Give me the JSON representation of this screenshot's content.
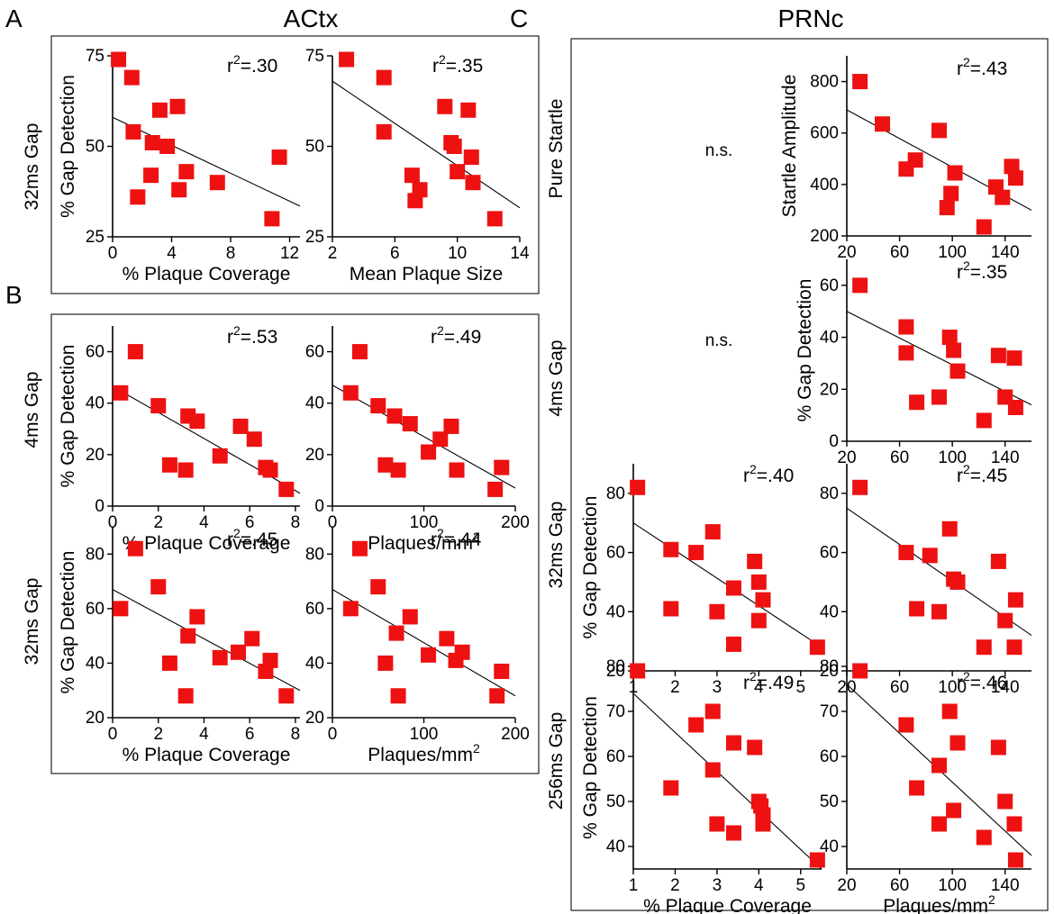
{
  "figure": {
    "letters": {
      "a": "A",
      "b": "B",
      "c": "C"
    },
    "titles": {
      "actx": "ACtx",
      "prnc": "PRNc"
    },
    "row_labels": {
      "a_32ms": "32ms Gap",
      "b_4ms": "4ms Gap",
      "b_32ms": "32ms Gap",
      "c_pure": "Pure Startle",
      "c_4ms": "4ms Gap",
      "c_32ms": "32ms Gap",
      "c_256ms": "256ms Gap"
    },
    "ns_text": "n.s."
  },
  "colors": {
    "marker": "#ee1111",
    "line": "#000000",
    "frame": "#222222"
  },
  "chart_data": [
    {
      "id": "a1",
      "type": "scatter",
      "xlabel": "% Plaque Coverage",
      "ylabel": "% Gap Detection",
      "r2": "r",
      "r2_sup": "2",
      "r2_val": "=.30",
      "xlim": [
        0,
        12.7
      ],
      "ylim": [
        25,
        75
      ],
      "xticks": [
        0,
        4,
        8,
        12
      ],
      "yticks": [
        25,
        50,
        75
      ],
      "x": [
        0.4,
        1.3,
        1.4,
        1.7,
        2.6,
        2.7,
        3.2,
        3.7,
        4.4,
        4.5,
        5.0,
        7.1,
        10.8,
        11.3
      ],
      "y": [
        74,
        69,
        54,
        36,
        42,
        51,
        60,
        50,
        61,
        38,
        43,
        40,
        30,
        47
      ],
      "trend": [
        [
          0,
          58
        ],
        [
          12.7,
          33.5
        ]
      ]
    },
    {
      "id": "a2",
      "type": "scatter",
      "xlabel": "Mean Plaque Size",
      "ylabel": "",
      "r2": "r",
      "r2_sup": "2",
      "r2_val": "=.35",
      "xlim": [
        2,
        14
      ],
      "ylim": [
        25,
        75
      ],
      "xticks": [
        2,
        6,
        10,
        14
      ],
      "yticks": [
        25,
        50,
        75
      ],
      "x": [
        2.9,
        5.3,
        5.3,
        7.1,
        7.3,
        7.6,
        9.2,
        9.6,
        9.8,
        10.0,
        10.7,
        10.9,
        11.0,
        12.4
      ],
      "y": [
        74,
        69,
        54,
        42,
        35,
        38,
        61,
        51,
        50,
        43,
        60,
        47,
        40,
        30
      ],
      "trend": [
        [
          2,
          68
        ],
        [
          14,
          33
        ]
      ]
    },
    {
      "id": "b1",
      "type": "scatter",
      "xlabel": "% Plaque Coverage",
      "ylabel": "% Gap Detection",
      "r2": "r",
      "r2_sup": "2",
      "r2_val": "=.53",
      "xlim": [
        0,
        8.2
      ],
      "ylim": [
        0,
        70
      ],
      "xticks": [
        0,
        2,
        4,
        6,
        8
      ],
      "yticks": [
        0,
        20,
        40,
        60
      ],
      "x": [
        0.35,
        1.0,
        2.0,
        2.5,
        3.2,
        3.3,
        3.7,
        4.7,
        5.6,
        6.2,
        6.7,
        6.9,
        7.6
      ],
      "y": [
        44,
        60,
        39,
        16,
        14,
        35,
        33,
        19.5,
        31,
        26,
        15,
        14,
        6.5
      ],
      "trend": [
        [
          0,
          46.5
        ],
        [
          8.2,
          5
        ]
      ]
    },
    {
      "id": "b2",
      "type": "scatter",
      "xlabel": "Plaques/mm",
      "xlabel_sup": "2",
      "ylabel": "",
      "r2": "r",
      "r2_sup": "2",
      "r2_val": "=.49",
      "xlim": [
        0,
        200
      ],
      "ylim": [
        0,
        70
      ],
      "xticks": [
        0,
        100,
        200
      ],
      "yticks": [
        0,
        20,
        40,
        60
      ],
      "x": [
        20,
        30,
        50,
        58,
        68,
        72,
        85,
        105,
        118,
        130,
        136,
        178,
        185
      ],
      "y": [
        44,
        60,
        39,
        16,
        35,
        14,
        32,
        21,
        26,
        31,
        14,
        6.5,
        15
      ],
      "trend": [
        [
          0,
          47
        ],
        [
          200,
          7
        ]
      ]
    },
    {
      "id": "b3",
      "type": "scatter",
      "xlabel": "% Plaque Coverage",
      "ylabel": "% Gap Detection",
      "r2": "r",
      "r2_sup": "2",
      "r2_val": "=.45",
      "xlim": [
        0,
        8.2
      ],
      "ylim": [
        20,
        90
      ],
      "xticks": [
        0,
        2,
        4,
        6,
        8
      ],
      "yticks": [
        20,
        40,
        60,
        80
      ],
      "x": [
        0.35,
        1.0,
        2.0,
        2.5,
        3.2,
        3.3,
        3.7,
        4.7,
        5.5,
        6.1,
        6.7,
        6.9,
        7.6
      ],
      "y": [
        60,
        82,
        68,
        40,
        28,
        50,
        57,
        42,
        44,
        49,
        37,
        41,
        28
      ],
      "trend": [
        [
          0,
          67
        ],
        [
          8.2,
          30
        ]
      ]
    },
    {
      "id": "b4",
      "type": "scatter",
      "xlabel": "Plaques/mm",
      "xlabel_sup": "2",
      "ylabel": "",
      "r2": "r",
      "r2_sup": "2",
      "r2_val": "=.44",
      "xlim": [
        0,
        200
      ],
      "ylim": [
        20,
        90
      ],
      "xticks": [
        0,
        100,
        200
      ],
      "yticks": [
        20,
        40,
        60,
        80
      ],
      "x": [
        20,
        30,
        50,
        58,
        70,
        72,
        85,
        105,
        125,
        135,
        142,
        180,
        185
      ],
      "y": [
        60,
        82,
        68,
        40,
        51,
        28,
        57,
        43,
        49,
        41,
        44,
        28,
        37
      ],
      "trend": [
        [
          0,
          67
        ],
        [
          200,
          28
        ]
      ]
    },
    {
      "id": "c1",
      "type": "scatter",
      "xlabel": "",
      "ylabel": "Startle Amplitude",
      "r2": "r",
      "r2_sup": "2",
      "r2_val": "=.43",
      "xlim": [
        20,
        160
      ],
      "ylim": [
        200,
        900
      ],
      "xticks": [
        20,
        60,
        100,
        140
      ],
      "yticks": [
        200,
        400,
        600,
        800
      ],
      "x": [
        30,
        47,
        65,
        72,
        90,
        96,
        99,
        102,
        124,
        133,
        138,
        145,
        148
      ],
      "y": [
        800,
        635,
        460,
        495,
        610,
        310,
        365,
        445,
        235,
        390,
        350,
        470,
        425
      ],
      "trend": [
        [
          20,
          690
        ],
        [
          160,
          300
        ]
      ]
    },
    {
      "id": "c2",
      "type": "scatter",
      "xlabel": "",
      "ylabel": "% Gap Detection",
      "r2": "r",
      "r2_sup": "2",
      "r2_val": "=.35",
      "xlim": [
        20,
        160
      ],
      "ylim": [
        0,
        70
      ],
      "xticks": [
        20,
        60,
        100,
        140
      ],
      "yticks": [
        0,
        20,
        40,
        60
      ],
      "x": [
        30,
        65,
        65,
        73,
        90,
        98,
        101,
        104,
        124,
        135,
        140,
        147,
        148
      ],
      "y": [
        60,
        44,
        34,
        15,
        17,
        40,
        35,
        27,
        8,
        33,
        17,
        32,
        13
      ],
      "trend": [
        [
          20,
          50
        ],
        [
          160,
          14
        ]
      ]
    },
    {
      "id": "c3",
      "type": "scatter",
      "xlabel": "",
      "ylabel": "% Gap Detection",
      "r2": "r",
      "r2_sup": "2",
      "r2_val": "=.40",
      "xlim": [
        1,
        5.5
      ],
      "ylim": [
        20,
        90
      ],
      "xticks": [
        1,
        2,
        3,
        4,
        5
      ],
      "yticks": [
        20,
        40,
        60,
        80
      ],
      "x": [
        1.1,
        1.9,
        1.9,
        2.5,
        2.9,
        3.0,
        3.4,
        3.4,
        3.9,
        4.0,
        4.0,
        4.1,
        5.4
      ],
      "y": [
        82,
        61,
        41,
        60,
        67,
        40,
        48,
        29,
        57,
        37,
        50,
        44,
        28
      ],
      "trend": [
        [
          1,
          70
        ],
        [
          5.5,
          28
        ]
      ]
    },
    {
      "id": "c4",
      "type": "scatter",
      "xlabel": "",
      "ylabel": "",
      "r2": "r",
      "r2_sup": "2",
      "r2_val": "=.45",
      "xlim": [
        20,
        160
      ],
      "ylim": [
        20,
        90
      ],
      "xticks": [
        20,
        60,
        100,
        140
      ],
      "yticks": [
        20,
        40,
        60,
        80
      ],
      "x": [
        30,
        65,
        73,
        83,
        90,
        98,
        101,
        104,
        124,
        135,
        140,
        147,
        148
      ],
      "y": [
        82,
        60,
        41,
        59,
        40,
        68,
        51,
        50,
        28,
        57,
        37,
        28,
        44
      ],
      "trend": [
        [
          20,
          75
        ],
        [
          160,
          32
        ]
      ]
    },
    {
      "id": "c5",
      "type": "scatter",
      "xlabel": "% Plaque Coverage",
      "ylabel": "% Gap Detection",
      "r2": "r",
      "r2_sup": "2",
      "r2_val": "=.49",
      "xlim": [
        1,
        5.5
      ],
      "ylim": [
        35,
        80
      ],
      "xticks": [
        1,
        2,
        3,
        4,
        5
      ],
      "yticks": [
        40,
        50,
        60,
        70,
        80
      ],
      "x": [
        1.1,
        1.9,
        2.5,
        2.9,
        2.9,
        3.0,
        3.4,
        3.4,
        3.9,
        4.0,
        4.05,
        4.1,
        4.1,
        5.4
      ],
      "y": [
        79,
        53,
        67,
        70,
        57,
        45,
        63,
        43,
        62,
        50,
        49,
        47,
        45,
        37
      ],
      "trend": [
        [
          1,
          74
        ],
        [
          5.5,
          35
        ]
      ]
    },
    {
      "id": "c6",
      "type": "scatter",
      "xlabel": "Plaques/mm",
      "xlabel_sup": "2",
      "ylabel": "",
      "r2": "r",
      "r2_sup": "2",
      "r2_val": "=.46",
      "xlim": [
        20,
        160
      ],
      "ylim": [
        35,
        80
      ],
      "xticks": [
        20,
        60,
        100,
        140
      ],
      "yticks": [
        40,
        50,
        60,
        70,
        80
      ],
      "x": [
        30,
        65,
        73,
        90,
        90,
        98,
        101,
        104,
        124,
        135,
        140,
        147,
        148
      ],
      "y": [
        79,
        67,
        53,
        58,
        45,
        70,
        48,
        63,
        42,
        62,
        50,
        45,
        37
      ],
      "trend": [
        [
          20,
          76
        ],
        [
          160,
          38
        ]
      ]
    }
  ]
}
